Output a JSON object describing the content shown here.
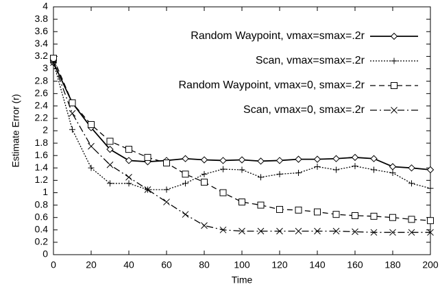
{
  "chart_data": {
    "type": "line",
    "x_label": "Time",
    "y_label": "Estimate Error (r)",
    "x": [
      0,
      10,
      20,
      30,
      40,
      50,
      60,
      70,
      80,
      90,
      100,
      110,
      120,
      130,
      140,
      150,
      160,
      170,
      180,
      190,
      200
    ],
    "series": [
      {
        "name": "Random Waypoint, vmax=smax=.2r",
        "color": "#000000",
        "dash": "solid",
        "marker": "diamond",
        "values": [
          3.1,
          2.45,
          2.05,
          1.7,
          1.52,
          1.5,
          1.52,
          1.55,
          1.53,
          1.52,
          1.53,
          1.51,
          1.52,
          1.54,
          1.54,
          1.55,
          1.57,
          1.55,
          1.42,
          1.4,
          1.37
        ]
      },
      {
        "name": "Scan, vmax=smax=.2r",
        "color": "#000000",
        "dash": "dotted",
        "marker": "plus",
        "values": [
          3.1,
          2.02,
          1.4,
          1.15,
          1.15,
          1.05,
          1.05,
          1.15,
          1.3,
          1.38,
          1.37,
          1.25,
          1.3,
          1.32,
          1.42,
          1.37,
          1.43,
          1.37,
          1.32,
          1.15,
          1.07
        ]
      },
      {
        "name": "Random Waypoint, vmax=0, smax=.2r",
        "color": "#000000",
        "dash": "dashed",
        "marker": "square",
        "values": [
          3.17,
          2.45,
          2.1,
          1.83,
          1.7,
          1.57,
          1.48,
          1.3,
          1.17,
          1.0,
          0.85,
          0.8,
          0.73,
          0.72,
          0.69,
          0.65,
          0.63,
          0.62,
          0.6,
          0.57,
          0.55
        ]
      },
      {
        "name": "Scan, vmax=0, smax=.2r",
        "color": "#000000",
        "dash": "dashdot",
        "marker": "cross",
        "values": [
          3.1,
          2.28,
          1.75,
          1.45,
          1.25,
          1.05,
          0.85,
          0.65,
          0.47,
          0.4,
          0.38,
          0.38,
          0.38,
          0.38,
          0.38,
          0.38,
          0.37,
          0.36,
          0.36,
          0.36,
          0.36
        ]
      }
    ],
    "xlim": [
      0,
      200
    ],
    "xticks": [
      0,
      20,
      40,
      60,
      80,
      100,
      120,
      140,
      160,
      180,
      200
    ],
    "ylim": [
      0,
      4
    ],
    "yticks": [
      0,
      0.2,
      0.4,
      0.6,
      0.8,
      1,
      1.2,
      1.4,
      1.6,
      1.8,
      2,
      2.2,
      2.4,
      2.6,
      2.8,
      3,
      3.2,
      3.4,
      3.6,
      3.8,
      4
    ],
    "legend": "upper right"
  }
}
